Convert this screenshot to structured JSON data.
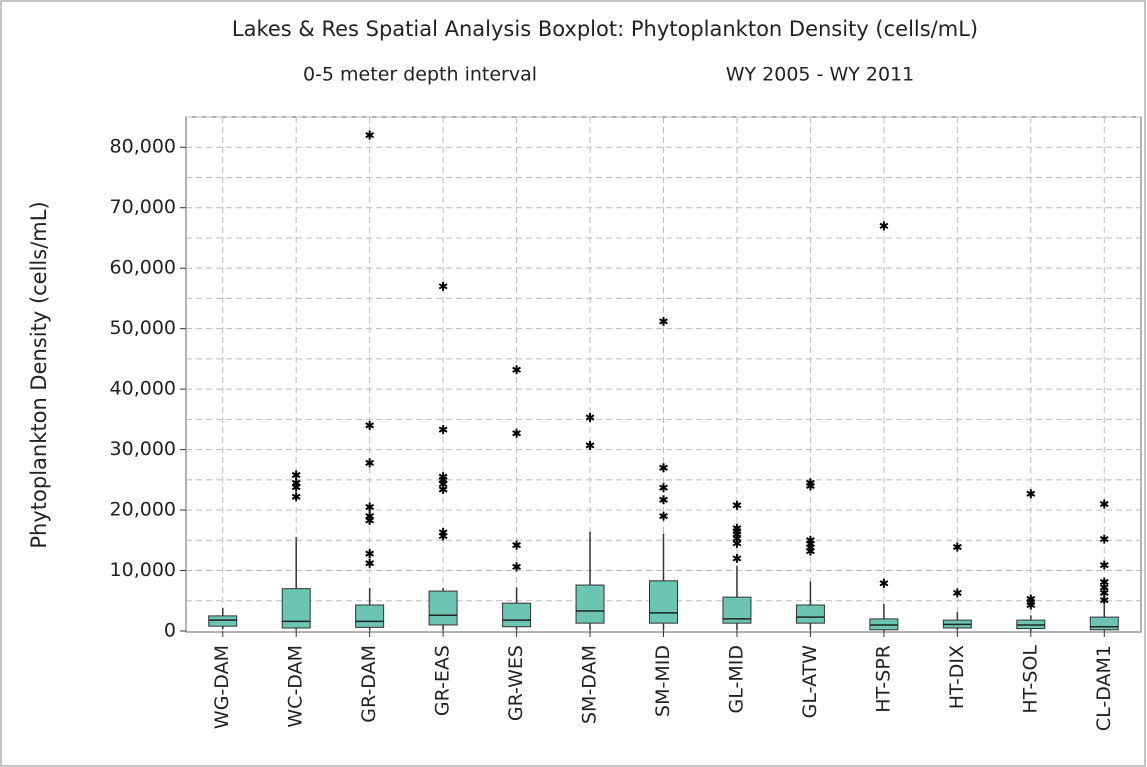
{
  "chart_data": {
    "type": "box",
    "title": "Lakes & Res Spatial Analysis Boxplot: Phytoplankton Density (cells/mL)",
    "subtitles": [
      "0-5 meter depth interval",
      "WY 2005 - WY 2011"
    ],
    "y_label": "Phytoplankton Density (cells/mL)",
    "categories": [
      "WG-DAM",
      "WC-DAM",
      "GR-DAM",
      "GR-EAS",
      "GR-WES",
      "SM-DAM",
      "SM-MID",
      "GL-MID",
      "GL-ATW",
      "HT-SPR",
      "HT-DIX",
      "HT-SOL",
      "CL-DAM1"
    ],
    "boxes": [
      {
        "whisker_low": 300,
        "q1": 800,
        "median": 1800,
        "q3": 2500,
        "whisker_high": 3800,
        "outliers": []
      },
      {
        "whisker_low": 100,
        "q1": 500,
        "median": 1600,
        "q3": 7000,
        "whisker_high": 15500,
        "outliers": [
          25800,
          24500,
          23800,
          22200
        ]
      },
      {
        "whisker_low": 100,
        "q1": 600,
        "median": 1600,
        "q3": 4300,
        "whisker_high": 7100,
        "outliers": [
          82000,
          34000,
          27800,
          20500,
          19000,
          18300,
          12800,
          11200
        ]
      },
      {
        "whisker_low": 100,
        "q1": 1000,
        "median": 2600,
        "q3": 6600,
        "whisker_high": 7100,
        "outliers": [
          57000,
          33300,
          25500,
          25000,
          24300,
          23400,
          16300,
          15700
        ]
      },
      {
        "whisker_low": 100,
        "q1": 700,
        "median": 1800,
        "q3": 4600,
        "whisker_high": 7200,
        "outliers": [
          43200,
          32700,
          14200,
          10600
        ]
      },
      {
        "whisker_low": 100,
        "q1": 1300,
        "median": 3300,
        "q3": 7600,
        "whisker_high": 16400,
        "outliers": [
          35300,
          30700
        ]
      },
      {
        "whisker_low": 100,
        "q1": 1300,
        "median": 3000,
        "q3": 8300,
        "whisker_high": 16100,
        "outliers": [
          51200,
          27000,
          23700,
          21700,
          19000
        ]
      },
      {
        "whisker_low": 100,
        "q1": 1300,
        "median": 2000,
        "q3": 5600,
        "whisker_high": 10800,
        "outliers": [
          20800,
          17000,
          16500,
          16000,
          15300,
          14500,
          12000
        ]
      },
      {
        "whisker_low": 100,
        "q1": 1300,
        "median": 2300,
        "q3": 4300,
        "whisker_high": 8200,
        "outliers": [
          24500,
          24000,
          15000,
          14400,
          13800,
          13200
        ]
      },
      {
        "whisker_low": 0,
        "q1": 200,
        "median": 1000,
        "q3": 2000,
        "whisker_high": 4500,
        "outliers": [
          67000,
          7900
        ]
      },
      {
        "whisker_low": 100,
        "q1": 500,
        "median": 1100,
        "q3": 1800,
        "whisker_high": 3100,
        "outliers": [
          13900,
          6300
        ]
      },
      {
        "whisker_low": 0,
        "q1": 400,
        "median": 1000,
        "q3": 1800,
        "whisker_high": 2600,
        "outliers": [
          22700,
          5300,
          4800,
          4300
        ]
      },
      {
        "whisker_low": 0,
        "q1": 200,
        "median": 700,
        "q3": 2300,
        "whisker_high": 4300,
        "outliers": [
          21000,
          15200,
          10900,
          8100,
          7200,
          6300,
          5100
        ]
      }
    ],
    "color": "#6cc4b2",
    "ylim": [
      0,
      85000
    ],
    "yticks": [
      0,
      {
        "value": 10000,
        "label": "10,000"
      },
      {
        "value": 20000,
        "label": "20,000"
      },
      {
        "value": 30000,
        "label": "30,000"
      },
      {
        "value": 40000,
        "label": "40,000"
      },
      {
        "value": 50000,
        "label": "50,000"
      },
      {
        "value": 60000,
        "label": "60,000"
      },
      {
        "value": 70000,
        "label": "70,000"
      },
      {
        "value": 80000,
        "label": "80,000"
      }
    ],
    "y_minor_grid": [
      5000,
      15000,
      25000,
      35000,
      45000,
      55000,
      65000,
      75000,
      85000
    ],
    "grid": true
  }
}
